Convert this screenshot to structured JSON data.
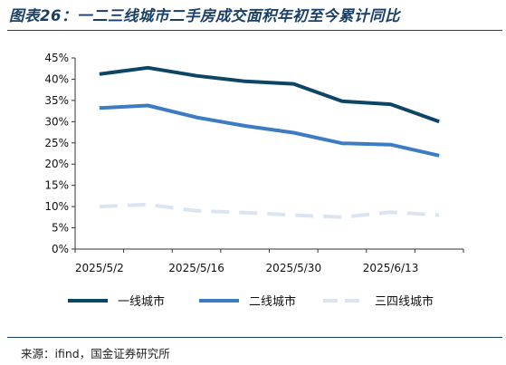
{
  "title": "图表26：一二三线城市二手房成交面积年初至今累计同比",
  "source": "来源：ifind，国金证券研究所",
  "chart_data": {
    "type": "line",
    "x": [
      "2025/5/2",
      "2025/5/9",
      "2025/5/16",
      "2025/5/23",
      "2025/5/30",
      "2025/6/6",
      "2025/6/13",
      "2025/6/20"
    ],
    "x_tick_labels": [
      "2025/5/2",
      "2025/5/16",
      "2025/5/30",
      "2025/6/13"
    ],
    "y_tick_labels": [
      "0%",
      "5%",
      "10%",
      "15%",
      "20%",
      "25%",
      "30%",
      "35%",
      "40%",
      "45%"
    ],
    "ylim": [
      0,
      45
    ],
    "grid": false,
    "legend_position": "bottom",
    "series": [
      {
        "name": "一线城市",
        "color": "#0d4566",
        "dashed": false,
        "values": [
          41.2,
          42.7,
          40.8,
          39.5,
          38.9,
          34.8,
          34.1,
          30.0
        ]
      },
      {
        "name": "二线城市",
        "color": "#3d7cc2",
        "dashed": false,
        "values": [
          33.2,
          33.8,
          31.0,
          29.0,
          27.4,
          24.9,
          24.6,
          22.0
        ]
      },
      {
        "name": "三四线城市",
        "color": "#dbe5f1",
        "dashed": true,
        "values": [
          10.0,
          10.5,
          9.0,
          8.6,
          8.0,
          7.5,
          8.7,
          8.0
        ]
      }
    ]
  }
}
